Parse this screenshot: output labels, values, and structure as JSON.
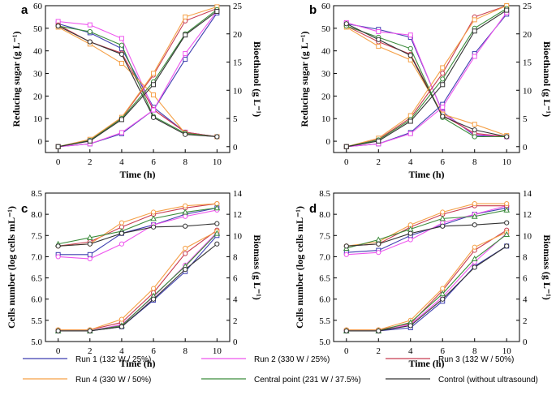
{
  "legend": [
    {
      "key": "run1",
      "label": "Run 1 (132 W / 25%)"
    },
    {
      "key": "run2",
      "label": "Run 2 (330 W / 25%)"
    },
    {
      "key": "run3",
      "label": "Run 3 (132 W / 50%)"
    },
    {
      "key": "run4",
      "label": "Run 4 (330 W / 50%)"
    },
    {
      "key": "central",
      "label": "Central point (231 W / 37.5%)"
    },
    {
      "key": "control",
      "label": "Control (without ultrasound)"
    }
  ],
  "colors": {
    "run1": "#3f3fb0",
    "run2": "#ee55ee",
    "run3": "#c83c50",
    "run4": "#f5a046",
    "central": "#3c8c3c",
    "control": "#333333"
  },
  "chart_data": [
    {
      "panel": "a",
      "type": "line",
      "xlabel": "Time (h)",
      "ylabel": "Reducing sugar (g L⁻¹)",
      "y2label": "Bioethanol (g L⁻¹)",
      "x": [
        0,
        2,
        4,
        6,
        8,
        10
      ],
      "xlim": [
        -0.8,
        10.8
      ],
      "xticks": [
        0,
        2,
        4,
        6,
        8,
        10
      ],
      "ylim": [
        -5,
        60
      ],
      "yticks": [
        0,
        10,
        20,
        30,
        40,
        50,
        60
      ],
      "y2lim": [
        -1.04,
        25
      ],
      "y2ticks": [
        0,
        5,
        10,
        15,
        20,
        25
      ],
      "series": [
        {
          "key": "run1",
          "axis": "left",
          "marker": "square",
          "values": [
            52,
            48,
            41,
            15,
            4,
            2
          ]
        },
        {
          "key": "run2",
          "axis": "left",
          "marker": "square",
          "values": [
            53,
            51.5,
            45.5,
            14,
            4,
            2
          ]
        },
        {
          "key": "run3",
          "axis": "left",
          "marker": "circle",
          "values": [
            51.5,
            44,
            39,
            14,
            4,
            2
          ]
        },
        {
          "key": "run4",
          "axis": "left",
          "marker": "square",
          "values": [
            50.5,
            43,
            34.5,
            20.5,
            3.5,
            2
          ]
        },
        {
          "key": "central",
          "axis": "left",
          "marker": "circle",
          "values": [
            51,
            48.5,
            42.5,
            11,
            3.5,
            2
          ]
        },
        {
          "key": "control",
          "axis": "left",
          "marker": "circle",
          "values": [
            51,
            44,
            38.5,
            10.5,
            3,
            2
          ]
        },
        {
          "key": "run1",
          "axis": "right",
          "marker": "square",
          "values": [
            0,
            0.5,
            2.3,
            6.5,
            15.5,
            23.7
          ]
        },
        {
          "key": "run2",
          "axis": "right",
          "marker": "square",
          "values": [
            0,
            0.5,
            2.5,
            6.5,
            16.5,
            24
          ]
        },
        {
          "key": "run3",
          "axis": "right",
          "marker": "circle",
          "values": [
            0,
            1.2,
            5.1,
            12.7,
            22.3,
            24.5
          ]
        },
        {
          "key": "run4",
          "axis": "right",
          "marker": "square",
          "values": [
            0,
            1.3,
            5.2,
            13,
            23,
            24.8
          ]
        },
        {
          "key": "central",
          "axis": "right",
          "marker": "circle",
          "values": [
            0,
            1.1,
            5,
            11.5,
            20,
            24.3
          ]
        },
        {
          "key": "control",
          "axis": "right",
          "marker": "square",
          "values": [
            0,
            1,
            4.8,
            11,
            19.8,
            24
          ]
        }
      ]
    },
    {
      "panel": "b",
      "type": "line",
      "xlabel": "Time (h)",
      "ylabel": "Reducing sugar (g L⁻¹)",
      "y2label": "Bioethanol (g L⁻¹)",
      "x": [
        0,
        2,
        4,
        6,
        8,
        10
      ],
      "xlim": [
        -0.8,
        10.8
      ],
      "xticks": [
        0,
        2,
        4,
        6,
        8,
        10
      ],
      "ylim": [
        -5,
        60
      ],
      "yticks": [
        0,
        10,
        20,
        30,
        40,
        50,
        60
      ],
      "y2lim": [
        -1.04,
        25
      ],
      "y2ticks": [
        0,
        5,
        10,
        15,
        20,
        25
      ],
      "series": [
        {
          "key": "run1",
          "axis": "left",
          "marker": "square",
          "values": [
            52,
            49.5,
            46,
            13,
            2.5,
            2
          ]
        },
        {
          "key": "run2",
          "axis": "left",
          "marker": "square",
          "values": [
            52.5,
            48.5,
            47,
            12.5,
            3,
            2
          ]
        },
        {
          "key": "run3",
          "axis": "left",
          "marker": "circle",
          "values": [
            51,
            44,
            38.5,
            11.5,
            3.5,
            2
          ]
        },
        {
          "key": "run4",
          "axis": "left",
          "marker": "square",
          "values": [
            50.5,
            42,
            36,
            12,
            7.5,
            2.5
          ]
        },
        {
          "key": "central",
          "axis": "left",
          "marker": "circle",
          "values": [
            51,
            46,
            41,
            10.5,
            2,
            2
          ]
        },
        {
          "key": "control",
          "axis": "left",
          "marker": "circle",
          "values": [
            52,
            45,
            38,
            11,
            5,
            2
          ]
        },
        {
          "key": "run1",
          "axis": "right",
          "marker": "square",
          "values": [
            0,
            0.5,
            2.5,
            7.5,
            16.5,
            23.5
          ]
        },
        {
          "key": "run2",
          "axis": "right",
          "marker": "square",
          "values": [
            0,
            0.5,
            2.3,
            7,
            16,
            23.8
          ]
        },
        {
          "key": "run3",
          "axis": "right",
          "marker": "circle",
          "values": [
            0,
            1.3,
            5.1,
            13,
            23,
            25
          ]
        },
        {
          "key": "run4",
          "axis": "right",
          "marker": "square",
          "values": [
            0,
            1.5,
            5.5,
            14,
            22.5,
            25
          ]
        },
        {
          "key": "central",
          "axis": "right",
          "marker": "circle",
          "values": [
            0,
            1.2,
            4.8,
            12,
            21,
            24.5
          ]
        },
        {
          "key": "control",
          "axis": "right",
          "marker": "square",
          "values": [
            0,
            1,
            4.5,
            11,
            20.5,
            24.2
          ]
        }
      ]
    },
    {
      "panel": "c",
      "type": "line",
      "xlabel": "Time (h)",
      "ylabel": "Cells number (log cells mL⁻¹)",
      "y2label": "Biomass (g L⁻¹)",
      "x": [
        0,
        2,
        4,
        6,
        8,
        10
      ],
      "xlim": [
        -0.8,
        10.8
      ],
      "xticks": [
        0,
        2,
        4,
        6,
        8,
        10
      ],
      "ylim": [
        5.0,
        8.5
      ],
      "yticks": [
        5.0,
        5.5,
        6.0,
        6.5,
        7.0,
        7.5,
        8.0,
        8.5
      ],
      "y2lim": [
        0,
        14
      ],
      "y2ticks": [
        0,
        2,
        4,
        6,
        8,
        10,
        12,
        14
      ],
      "series": [
        {
          "key": "run1",
          "axis": "left",
          "marker": "square",
          "values": [
            7.05,
            7.05,
            7.55,
            7.75,
            8.0,
            8.15
          ]
        },
        {
          "key": "run2",
          "axis": "left",
          "marker": "circle",
          "values": [
            7.0,
            6.95,
            7.3,
            7.75,
            7.95,
            8.1
          ]
        },
        {
          "key": "run3",
          "axis": "left",
          "marker": "circle",
          "values": [
            7.25,
            7.35,
            7.7,
            8.0,
            8.15,
            8.25
          ]
        },
        {
          "key": "run4",
          "axis": "left",
          "marker": "circle",
          "values": [
            7.25,
            7.3,
            7.8,
            8.05,
            8.2,
            8.25
          ]
        },
        {
          "key": "central",
          "axis": "left",
          "marker": "triangle",
          "values": [
            7.3,
            7.45,
            7.6,
            7.9,
            8.05,
            8.15
          ]
        },
        {
          "key": "control",
          "axis": "left",
          "marker": "circle",
          "values": [
            7.25,
            7.3,
            7.55,
            7.7,
            7.72,
            7.78
          ]
        },
        {
          "key": "run1",
          "axis": "right",
          "marker": "square",
          "values": [
            1.0,
            1.0,
            1.4,
            3.9,
            6.6,
            10.0
          ]
        },
        {
          "key": "run2",
          "axis": "right",
          "marker": "circle",
          "values": [
            1.0,
            1.0,
            1.6,
            4.2,
            7.2,
            10.3
          ]
        },
        {
          "key": "run3",
          "axis": "right",
          "marker": "circle",
          "values": [
            1.1,
            1.1,
            1.8,
            4.6,
            8.3,
            10.5
          ]
        },
        {
          "key": "run4",
          "axis": "right",
          "marker": "circle",
          "values": [
            1.1,
            1.1,
            2.1,
            5.0,
            8.8,
            10.4
          ]
        },
        {
          "key": "central",
          "axis": "right",
          "marker": "triangle",
          "values": [
            1.0,
            1.0,
            1.5,
            4.3,
            7.1,
            10.2
          ]
        },
        {
          "key": "control",
          "axis": "right",
          "marker": "circle",
          "values": [
            1.0,
            1.0,
            1.4,
            4.0,
            6.8,
            9.2
          ]
        }
      ]
    },
    {
      "panel": "d",
      "type": "line",
      "xlabel": "Time (h)",
      "ylabel": "Cells number (log cells mL⁻¹)",
      "y2label": "Biomass (g L⁻¹)",
      "x": [
        0,
        2,
        4,
        6,
        8,
        10
      ],
      "xlim": [
        -0.8,
        10.8
      ],
      "xticks": [
        0,
        2,
        4,
        6,
        8,
        10
      ],
      "ylim": [
        5.0,
        8.5
      ],
      "yticks": [
        5.0,
        5.5,
        6.0,
        6.5,
        7.0,
        7.5,
        8.0,
        8.5
      ],
      "y2lim": [
        0,
        14
      ],
      "y2ticks": [
        0,
        2,
        4,
        6,
        8,
        10,
        12,
        14
      ],
      "series": [
        {
          "key": "run1",
          "axis": "left",
          "marker": "square",
          "values": [
            7.1,
            7.15,
            7.5,
            7.75,
            8.0,
            8.15
          ]
        },
        {
          "key": "run2",
          "axis": "left",
          "marker": "circle",
          "values": [
            7.05,
            7.1,
            7.4,
            7.8,
            8.0,
            8.2
          ]
        },
        {
          "key": "run3",
          "axis": "left",
          "marker": "circle",
          "values": [
            7.25,
            7.3,
            7.7,
            8.0,
            8.2,
            8.2
          ]
        },
        {
          "key": "run4",
          "axis": "left",
          "marker": "circle",
          "values": [
            7.25,
            7.35,
            7.75,
            8.05,
            8.25,
            8.25
          ]
        },
        {
          "key": "central",
          "axis": "left",
          "marker": "triangle",
          "values": [
            7.2,
            7.4,
            7.65,
            7.9,
            7.95,
            8.1
          ]
        },
        {
          "key": "control",
          "axis": "left",
          "marker": "circle",
          "values": [
            7.25,
            7.3,
            7.55,
            7.72,
            7.75,
            7.8
          ]
        },
        {
          "key": "run1",
          "axis": "right",
          "marker": "square",
          "values": [
            1.0,
            1.0,
            1.3,
            3.8,
            7.1,
            9.0
          ]
        },
        {
          "key": "run2",
          "axis": "right",
          "marker": "circle",
          "values": [
            1.0,
            1.0,
            1.6,
            4.2,
            7.5,
            10.2
          ]
        },
        {
          "key": "run3",
          "axis": "right",
          "marker": "circle",
          "values": [
            1.1,
            1.1,
            1.7,
            4.8,
            8.6,
            10.5
          ]
        },
        {
          "key": "run4",
          "axis": "right",
          "marker": "circle",
          "values": [
            1.1,
            1.1,
            2.0,
            5.0,
            8.9,
            10.3
          ]
        },
        {
          "key": "central",
          "axis": "right",
          "marker": "triangle",
          "values": [
            1.0,
            1.0,
            1.8,
            4.5,
            7.8,
            10.1
          ]
        },
        {
          "key": "control",
          "axis": "right",
          "marker": "circle",
          "values": [
            1.0,
            1.0,
            1.5,
            4.0,
            7.0,
            9.0
          ]
        }
      ]
    }
  ]
}
